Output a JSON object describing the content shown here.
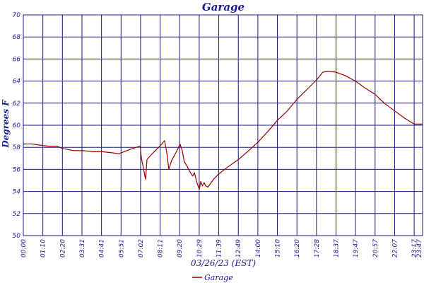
{
  "chart_data": {
    "type": "line",
    "title": "Garage",
    "xlabel": "03/26/23 (EST)",
    "ylabel": "Degrees F",
    "ylim": [
      50,
      70
    ],
    "y_ticks": [
      "50",
      "52",
      "54",
      "56",
      "58",
      "60",
      "62",
      "64",
      "66",
      "68",
      "70"
    ],
    "x_ticks": [
      "00:00",
      "01:10",
      "02:20",
      "03:31",
      "04:41",
      "05:51",
      "07:02",
      "08:11",
      "09:20",
      "10:29",
      "11:39",
      "12:49",
      "14:00",
      "15:10",
      "16:20",
      "17:28",
      "18:37",
      "19:47",
      "20:57",
      "22:07",
      "23:17",
      "23:47"
    ],
    "grid": true,
    "legend_position": "bottom-center",
    "series": [
      {
        "name": "Garage",
        "color": "#990000",
        "points": [
          [
            "00:00",
            58.3
          ],
          [
            "00:30",
            58.3
          ],
          [
            "01:00",
            58.2
          ],
          [
            "01:30",
            58.1
          ],
          [
            "02:00",
            58.1
          ],
          [
            "02:20",
            57.9
          ],
          [
            "03:00",
            57.7
          ],
          [
            "03:31",
            57.7
          ],
          [
            "04:10",
            57.6
          ],
          [
            "04:41",
            57.6
          ],
          [
            "05:20",
            57.5
          ],
          [
            "05:40",
            57.4
          ],
          [
            "06:00",
            57.6
          ],
          [
            "06:30",
            57.9
          ],
          [
            "06:58",
            58.1
          ],
          [
            "07:02",
            57.0
          ],
          [
            "07:10",
            56.0
          ],
          [
            "07:17",
            55.1
          ],
          [
            "07:22",
            56.9
          ],
          [
            "07:40",
            57.4
          ],
          [
            "08:00",
            57.9
          ],
          [
            "08:15",
            58.3
          ],
          [
            "08:25",
            58.6
          ],
          [
            "08:33",
            57.5
          ],
          [
            "08:40",
            56.0
          ],
          [
            "08:50",
            56.8
          ],
          [
            "09:05",
            57.5
          ],
          [
            "09:15",
            58.0
          ],
          [
            "09:20",
            58.3
          ],
          [
            "09:28",
            57.7
          ],
          [
            "09:35",
            56.7
          ],
          [
            "09:45",
            56.3
          ],
          [
            "09:55",
            55.8
          ],
          [
            "10:05",
            55.4
          ],
          [
            "10:12",
            55.7
          ],
          [
            "10:18",
            55.0
          ],
          [
            "10:23",
            54.6
          ],
          [
            "10:29",
            54.2
          ],
          [
            "10:34",
            54.9
          ],
          [
            "10:40",
            54.5
          ],
          [
            "10:46",
            54.8
          ],
          [
            "10:52",
            54.5
          ],
          [
            "11:00",
            54.4
          ],
          [
            "11:20",
            55.1
          ],
          [
            "11:39",
            55.6
          ],
          [
            "12:10",
            56.2
          ],
          [
            "12:49",
            56.9
          ],
          [
            "13:30",
            57.8
          ],
          [
            "14:00",
            58.5
          ],
          [
            "14:40",
            59.6
          ],
          [
            "15:10",
            60.5
          ],
          [
            "15:40",
            61.2
          ],
          [
            "16:20",
            62.4
          ],
          [
            "17:00",
            63.4
          ],
          [
            "17:28",
            64.1
          ],
          [
            "17:50",
            64.8
          ],
          [
            "18:10",
            64.9
          ],
          [
            "18:37",
            64.8
          ],
          [
            "19:10",
            64.5
          ],
          [
            "19:47",
            64.0
          ],
          [
            "20:20",
            63.4
          ],
          [
            "20:57",
            62.8
          ],
          [
            "21:30",
            62.0
          ],
          [
            "22:07",
            61.3
          ],
          [
            "22:45",
            60.6
          ],
          [
            "23:17",
            60.1
          ],
          [
            "23:47",
            60.1
          ]
        ]
      }
    ]
  }
}
